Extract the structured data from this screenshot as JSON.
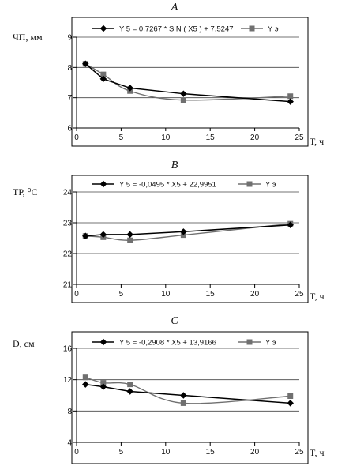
{
  "chart_data": [
    {
      "type": "line",
      "panel_letter": "A",
      "ylabel": "ЧП, мм",
      "xlabel": "Т, ч",
      "xlim": [
        0,
        25
      ],
      "ylim": [
        6,
        9
      ],
      "xticks": [
        0,
        5,
        10,
        15,
        20,
        25
      ],
      "yticks": [
        6,
        7,
        8,
        9
      ],
      "grid": true,
      "legend_position": "top",
      "series": [
        {
          "name": "Y 5 = 0,7267 * SIN ( X5 ) + 7,5247",
          "color": "#000000",
          "marker": "diamond",
          "x": [
            1,
            3,
            6,
            12,
            24
          ],
          "y": [
            8.12,
            7.62,
            7.32,
            7.13,
            6.87
          ]
        },
        {
          "name": "Y э",
          "color": "#707070",
          "marker": "square",
          "x": [
            1,
            3,
            6,
            12,
            24
          ],
          "y": [
            8.12,
            7.77,
            7.22,
            6.92,
            7.05
          ]
        }
      ]
    },
    {
      "type": "line",
      "panel_letter": "B",
      "ylabel": "TP, ⁰C",
      "xlabel": "T, ч",
      "xlim": [
        0,
        25
      ],
      "ylim": [
        21,
        24
      ],
      "xticks": [
        0,
        5,
        10,
        15,
        20,
        25
      ],
      "yticks": [
        21,
        22,
        23,
        24
      ],
      "grid": true,
      "legend_position": "top",
      "series": [
        {
          "name": "Y 5 = -0,0495 * X5 + 22,9951",
          "color": "#000000",
          "marker": "diamond",
          "x": [
            1,
            3,
            6,
            12,
            24
          ],
          "y": [
            22.57,
            22.62,
            22.62,
            22.71,
            22.93
          ]
        },
        {
          "name": "Y э",
          "color": "#707070",
          "marker": "square",
          "x": [
            1,
            3,
            6,
            12,
            24
          ],
          "y": [
            22.57,
            22.53,
            22.43,
            22.6,
            22.97
          ]
        }
      ]
    },
    {
      "type": "line",
      "panel_letter": "C",
      "ylabel": "D, см",
      "xlabel": "T, ч",
      "xlim": [
        0,
        25
      ],
      "ylim": [
        4,
        16
      ],
      "xticks": [
        0,
        5,
        10,
        15,
        20,
        25
      ],
      "yticks": [
        4,
        8,
        12,
        16
      ],
      "grid": true,
      "legend_position": "top",
      "series": [
        {
          "name": "Y 5 = -0,2908 * X5 + 13,9166",
          "color": "#000000",
          "marker": "diamond",
          "x": [
            1,
            3,
            6,
            12,
            24
          ],
          "y": [
            11.4,
            11.1,
            10.5,
            10.0,
            9.0
          ]
        },
        {
          "name": "Y э",
          "color": "#707070",
          "marker": "square",
          "x": [
            1,
            3,
            6,
            12,
            24
          ],
          "y": [
            12.3,
            11.6,
            11.4,
            9.0,
            9.9
          ]
        }
      ]
    }
  ]
}
